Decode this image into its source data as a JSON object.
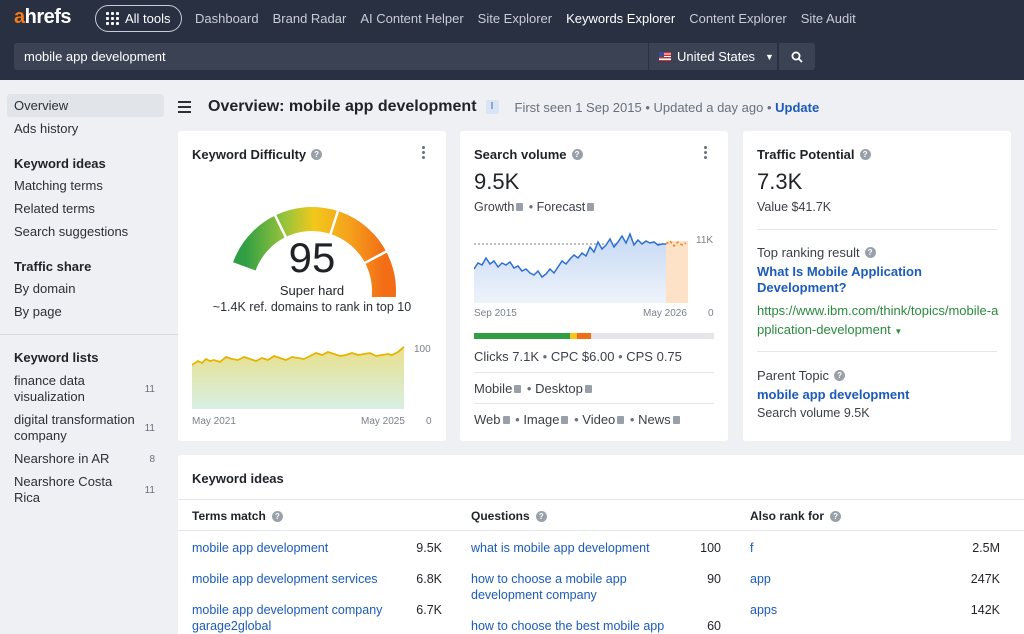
{
  "topbar": {
    "logo_accent": "a",
    "logo_rest": "hrefs",
    "all_tools": "All tools",
    "nav": [
      "Dashboard",
      "Brand Radar",
      "AI Content Helper",
      "Site Explorer",
      "Keywords Explorer",
      "Content Explorer",
      "Site Audit"
    ],
    "active_nav": "Keywords Explorer",
    "search_value": "mobile app development",
    "country": "United States"
  },
  "sidebar": {
    "overview": "Overview",
    "ads_history": "Ads history",
    "keyword_ideas_head": "Keyword ideas",
    "matching_terms": "Matching terms",
    "related_terms": "Related terms",
    "search_suggestions": "Search suggestions",
    "traffic_share_head": "Traffic share",
    "by_domain": "By domain",
    "by_page": "By page",
    "keyword_lists_head": "Keyword lists",
    "lists": [
      {
        "name": "finance data visualization",
        "count": "11"
      },
      {
        "name": "digital transformation company",
        "count": "11"
      },
      {
        "name": "Nearshore in AR",
        "count": "8"
      },
      {
        "name": "Nearshore Costa Rica",
        "count": "11"
      }
    ]
  },
  "header": {
    "title": "Overview: mobile app development",
    "badge": "I",
    "meta": "First seen 1 Sep 2015 • Updated a day ago •",
    "update": "Update"
  },
  "kd": {
    "title": "Keyword Difficulty",
    "value": "95",
    "label": "Super hard",
    "sub": "~1.4K ref. domains to rank in top 10",
    "x_start": "May 2021",
    "x_end": "May 2025",
    "y_max": "100",
    "y_min": "0",
    "gauge_level": 0.95
  },
  "sv": {
    "title": "Search volume",
    "value": "9.5K",
    "growth": "Growth",
    "forecast": "Forecast",
    "x_start": "Sep 2015",
    "x_end": "May 2026",
    "y_max": "11K",
    "y_min": "0",
    "clicks": "Clicks 7.1K",
    "cpc": "CPC $6.00",
    "cps": "CPS 0.75",
    "mobile": "Mobile",
    "desktop": "Desktop",
    "web": "Web",
    "image": "Image",
    "video": "Video",
    "news": "News"
  },
  "tp": {
    "title": "Traffic Potential",
    "value": "7.3K",
    "value_text": "Value $41.7K",
    "top_result_label": "Top ranking result",
    "top_result_title": "What Is Mobile Application Development?",
    "top_result_url": "https://www.ibm.com/think/topics/mobile-application-development",
    "parent_label": "Parent Topic",
    "parent_topic": "mobile app development",
    "parent_volume": "Search volume 9.5K"
  },
  "ideas": {
    "title": "Keyword ideas",
    "terms_head": "Terms match",
    "questions_head": "Questions",
    "also_head": "Also rank for",
    "terms": [
      {
        "kw": "mobile app development",
        "vol": "9.5K"
      },
      {
        "kw": "mobile app development services",
        "vol": "6.8K"
      },
      {
        "kw": "mobile app development company garage2global",
        "vol": "6.7K"
      }
    ],
    "questions": [
      {
        "kw": "what is mobile app development",
        "vol": "100"
      },
      {
        "kw": "how to choose a mobile app development company",
        "vol": "90"
      },
      {
        "kw": "how to choose the best mobile app",
        "vol": "60"
      }
    ],
    "also": [
      {
        "kw": "f",
        "vol": "2.5M"
      },
      {
        "kw": "app",
        "vol": "247K"
      },
      {
        "kw": "apps",
        "vol": "142K"
      }
    ]
  },
  "colors": {
    "brand": "#f57a19",
    "link": "#1c5bb8",
    "topbar": "#293042"
  }
}
